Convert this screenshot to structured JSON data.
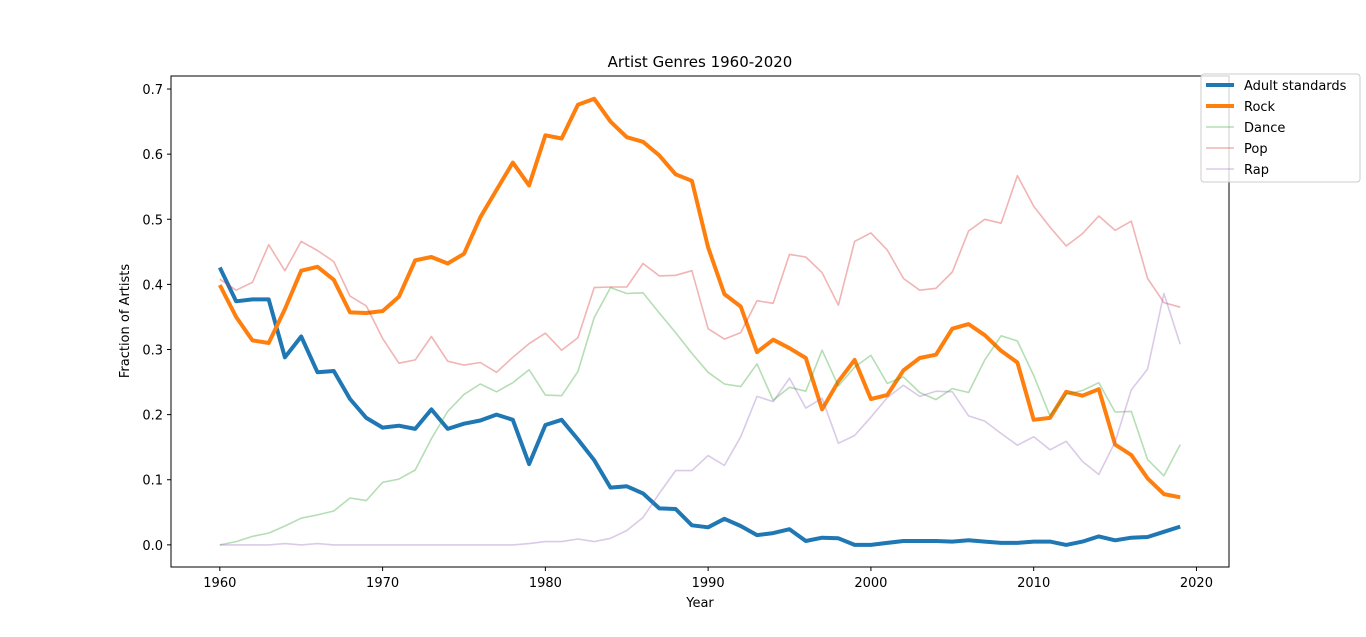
{
  "chart_data": {
    "type": "line",
    "title": "Artist Genres 1960-2020",
    "xlabel": "Year",
    "ylabel": "Fraction of Artists",
    "xlim": [
      1957,
      2022
    ],
    "ylim": [
      -0.034,
      0.72
    ],
    "xticks": [
      1960,
      1970,
      1980,
      1990,
      2000,
      2010,
      2020
    ],
    "xtick_labels": [
      "1960",
      "1970",
      "1980",
      "1990",
      "2000",
      "2010",
      "2020"
    ],
    "yticks": [
      0.0,
      0.1,
      0.2,
      0.3,
      0.4,
      0.5,
      0.6,
      0.7
    ],
    "ytick_labels": [
      "0.0",
      "0.1",
      "0.2",
      "0.3",
      "0.4",
      "0.5",
      "0.6",
      "0.7"
    ],
    "grid": false,
    "legend_position": "top-right outside",
    "x": [
      1960,
      1961,
      1962,
      1963,
      1964,
      1965,
      1966,
      1967,
      1968,
      1969,
      1970,
      1971,
      1972,
      1973,
      1974,
      1975,
      1976,
      1977,
      1978,
      1979,
      1980,
      1981,
      1982,
      1983,
      1984,
      1985,
      1986,
      1987,
      1988,
      1989,
      1990,
      1991,
      1992,
      1993,
      1994,
      1995,
      1996,
      1997,
      1998,
      1999,
      2000,
      2001,
      2002,
      2003,
      2004,
      2005,
      2006,
      2007,
      2008,
      2009,
      2010,
      2011,
      2012,
      2013,
      2014,
      2015,
      2016,
      2017,
      2018,
      2019
    ],
    "series": [
      {
        "name": "Adult standards",
        "color": "#1f77b4",
        "opacity": 1,
        "width": "bold",
        "values": [
          0.426,
          0.374,
          0.377,
          0.377,
          0.288,
          0.32,
          0.265,
          0.267,
          0.224,
          0.195,
          0.18,
          0.183,
          0.178,
          0.208,
          0.178,
          0.186,
          0.191,
          0.2,
          0.192,
          0.124,
          0.184,
          0.192,
          0.162,
          0.13,
          0.088,
          0.09,
          0.079,
          0.056,
          0.055,
          0.03,
          0.027,
          0.04,
          0.029,
          0.015,
          0.018,
          0.024,
          0.006,
          0.011,
          0.01,
          0.0,
          0.0,
          0.003,
          0.006,
          0.006,
          0.006,
          0.005,
          0.007,
          0.005,
          0.003,
          0.003,
          0.005,
          0.005,
          0.0,
          0.005,
          0.013,
          0.007,
          0.011,
          0.012,
          0.02,
          0.028
        ]
      },
      {
        "name": "Rock",
        "color": "#ff7f0e",
        "opacity": 1,
        "width": "bold",
        "values": [
          0.399,
          0.35,
          0.314,
          0.31,
          0.362,
          0.421,
          0.427,
          0.407,
          0.357,
          0.356,
          0.359,
          0.381,
          0.437,
          0.442,
          0.432,
          0.447,
          0.503,
          0.545,
          0.587,
          0.552,
          0.629,
          0.624,
          0.676,
          0.685,
          0.65,
          0.626,
          0.619,
          0.598,
          0.569,
          0.559,
          0.457,
          0.385,
          0.366,
          0.296,
          0.315,
          0.302,
          0.287,
          0.208,
          0.251,
          0.284,
          0.224,
          0.23,
          0.268,
          0.287,
          0.292,
          0.332,
          0.339,
          0.322,
          0.298,
          0.28,
          0.192,
          0.195,
          0.235,
          0.229,
          0.239,
          0.154,
          0.138,
          0.102,
          0.078,
          0.073
        ]
      },
      {
        "name": "Dance",
        "color": "#2ca02c",
        "opacity": 0.35,
        "width": "thin",
        "values": [
          0.0,
          0.005,
          0.013,
          0.018,
          0.029,
          0.041,
          0.046,
          0.052,
          0.072,
          0.068,
          0.096,
          0.101,
          0.115,
          0.163,
          0.205,
          0.231,
          0.247,
          0.235,
          0.249,
          0.269,
          0.23,
          0.229,
          0.266,
          0.349,
          0.395,
          0.386,
          0.387,
          0.356,
          0.326,
          0.294,
          0.265,
          0.247,
          0.243,
          0.278,
          0.222,
          0.242,
          0.236,
          0.299,
          0.244,
          0.273,
          0.291,
          0.248,
          0.258,
          0.234,
          0.223,
          0.24,
          0.234,
          0.284,
          0.321,
          0.313,
          0.26,
          0.198,
          0.231,
          0.237,
          0.249,
          0.204,
          0.205,
          0.131,
          0.106,
          0.154
        ]
      },
      {
        "name": "Pop",
        "color": "#d62728",
        "opacity": 0.35,
        "width": "thin",
        "values": [
          0.408,
          0.391,
          0.403,
          0.461,
          0.421,
          0.466,
          0.452,
          0.435,
          0.382,
          0.367,
          0.317,
          0.279,
          0.284,
          0.32,
          0.282,
          0.276,
          0.28,
          0.265,
          0.288,
          0.309,
          0.325,
          0.299,
          0.318,
          0.395,
          0.396,
          0.396,
          0.432,
          0.413,
          0.414,
          0.421,
          0.332,
          0.316,
          0.326,
          0.375,
          0.371,
          0.446,
          0.442,
          0.418,
          0.368,
          0.466,
          0.479,
          0.453,
          0.409,
          0.391,
          0.394,
          0.419,
          0.482,
          0.5,
          0.494,
          0.567,
          0.52,
          0.488,
          0.459,
          0.478,
          0.505,
          0.483,
          0.497,
          0.409,
          0.372,
          0.365
        ]
      },
      {
        "name": "Rap",
        "color": "#9467bd",
        "opacity": 0.35,
        "width": "thin",
        "values": [
          0.0,
          0.0,
          0.0,
          0.0,
          0.002,
          0.0,
          0.002,
          0.0,
          0.0,
          0.0,
          0.0,
          0.0,
          0.0,
          0.0,
          0.0,
          0.0,
          0.0,
          0.0,
          0.0,
          0.002,
          0.005,
          0.005,
          0.009,
          0.005,
          0.01,
          0.022,
          0.042,
          0.079,
          0.114,
          0.114,
          0.137,
          0.122,
          0.166,
          0.228,
          0.22,
          0.256,
          0.21,
          0.225,
          0.156,
          0.168,
          0.196,
          0.226,
          0.245,
          0.228,
          0.236,
          0.235,
          0.198,
          0.19,
          0.171,
          0.153,
          0.166,
          0.146,
          0.159,
          0.128,
          0.108,
          0.158,
          0.238,
          0.27,
          0.386,
          0.308
        ]
      }
    ]
  }
}
